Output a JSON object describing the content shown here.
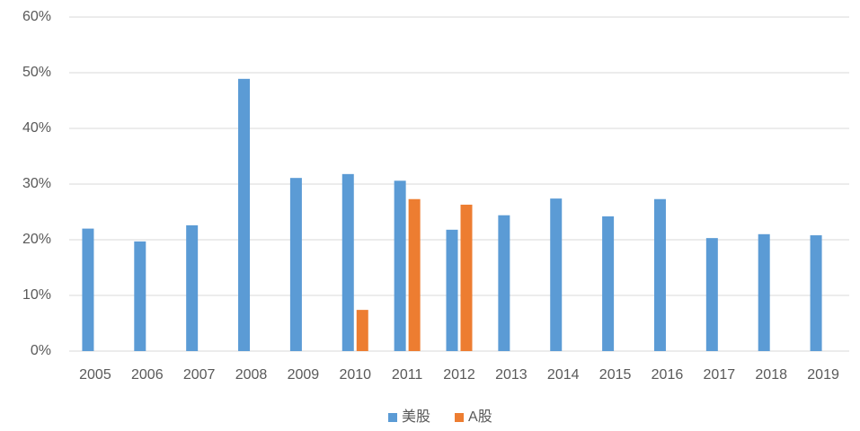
{
  "chart_data": {
    "type": "bar",
    "categories": [
      "2005",
      "2006",
      "2007",
      "2008",
      "2009",
      "2010",
      "2011",
      "2012",
      "2013",
      "2014",
      "2015",
      "2016",
      "2017",
      "2018",
      "2019"
    ],
    "series": [
      {
        "name": "美股",
        "color": "#5b9bd5",
        "values": [
          22,
          19.7,
          22.6,
          48.9,
          31.1,
          31.8,
          30.6,
          21.8,
          24.4,
          27.4,
          24.2,
          27.3,
          20.3,
          21,
          20.8
        ]
      },
      {
        "name": "A股",
        "color": "#ed7d31",
        "values": [
          null,
          null,
          null,
          null,
          null,
          7.4,
          27.3,
          26.3,
          null,
          null,
          null,
          null,
          null,
          null,
          null
        ]
      }
    ],
    "ylim": [
      0,
      60
    ],
    "yticks": [
      {
        "value": 0,
        "label": "0%"
      },
      {
        "value": 10,
        "label": "10%"
      },
      {
        "value": 20,
        "label": "20%"
      },
      {
        "value": 30,
        "label": "30%"
      },
      {
        "value": 40,
        "label": "40%"
      },
      {
        "value": 50,
        "label": "50%"
      },
      {
        "value": 60,
        "label": "60%"
      }
    ],
    "grid": true,
    "legend": "bottom"
  }
}
